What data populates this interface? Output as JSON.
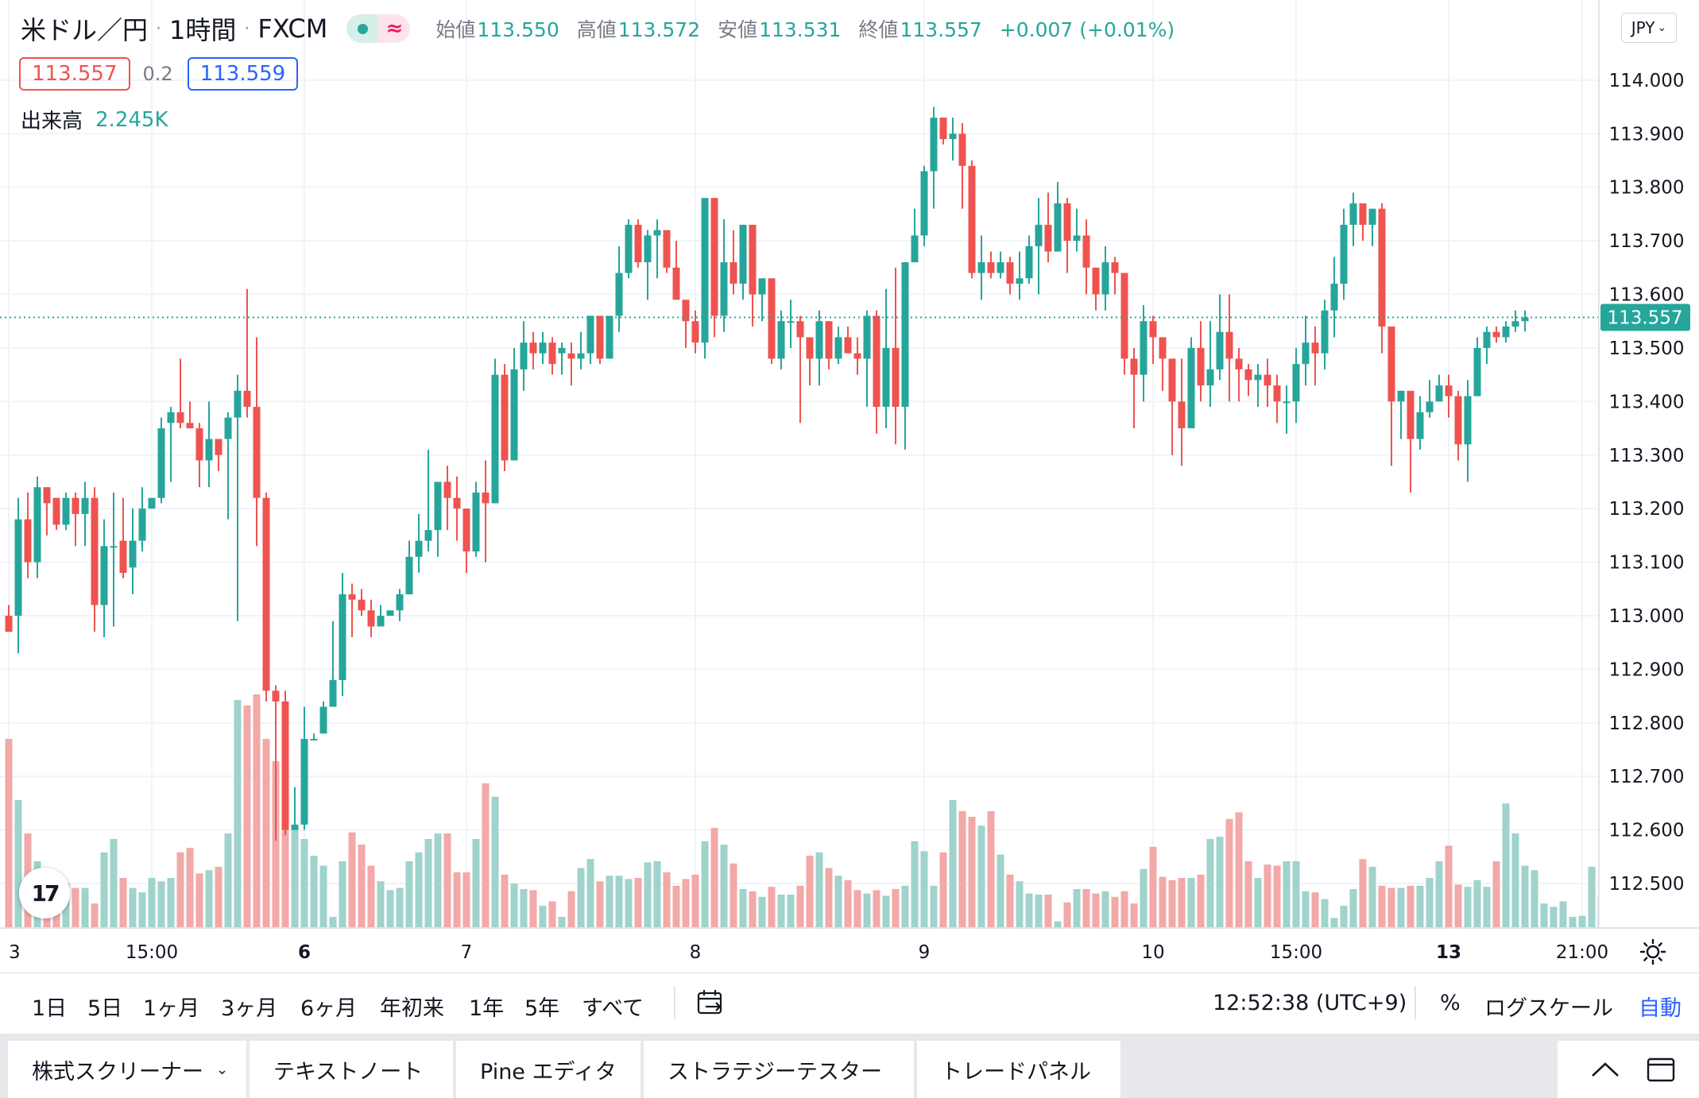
{
  "header": {
    "symbol": "米ドル／円",
    "interval": "1時間",
    "exchange": "FXCM",
    "open_label": "始値",
    "open": "113.550",
    "high_label": "高値",
    "high": "113.572",
    "low_label": "安値",
    "low": "113.531",
    "close_label": "終値",
    "close": "113.557",
    "change": "+0.007 (+0.01%)"
  },
  "quote": {
    "sell": "113.557",
    "spread": "0.2",
    "buy": "113.559"
  },
  "volume_indicator": {
    "label": "出来高",
    "value": "2.245K"
  },
  "currency_button": "JPY",
  "logo": "17",
  "bottom_toolbar": {
    "ranges": [
      "1日",
      "5日",
      "1ヶ月",
      "3ヶ月",
      "6ヶ月",
      "年初来",
      "1年",
      "5年",
      "すべて"
    ],
    "time": "12:52:38 (UTC+9)",
    "percent": "%",
    "log_scale": "ログスケール",
    "auto": "自動"
  },
  "widget_tabs": [
    "株式スクリーナー",
    "テキストノート",
    "Pine エディタ",
    "ストラテジーテスター",
    "トレードパネル"
  ],
  "colors": {
    "up": "#26a69a",
    "down": "#ef5350",
    "vol_up": "#9fd3cc",
    "vol_down": "#f2a9a7",
    "grid": "#f0f3fa",
    "accent": "#2962ff"
  },
  "chart_data": {
    "type": "candlestick",
    "symbol": "USD/JPY",
    "interval": "1H",
    "ylim": [
      112.417,
      114.12
    ],
    "y_ticks": [
      "114.000",
      "113.900",
      "113.800",
      "113.700",
      "113.600",
      "113.500",
      "113.400",
      "113.300",
      "113.200",
      "113.100",
      "113.000",
      "112.900",
      "112.800",
      "112.700",
      "112.600",
      "112.500"
    ],
    "x_ticks": [
      {
        "label": "3",
        "bar": 0,
        "bold": false
      },
      {
        "label": "15:00",
        "bar": 15,
        "bold": false
      },
      {
        "label": "6",
        "bar": 31,
        "bold": true
      },
      {
        "label": "7",
        "bar": 48,
        "bold": false
      },
      {
        "label": "8",
        "bar": 72,
        "bold": false
      },
      {
        "label": "9",
        "bar": 96,
        "bold": false
      },
      {
        "label": "10",
        "bar": 120,
        "bold": false
      },
      {
        "label": "15:00",
        "bar": 135,
        "bold": false
      },
      {
        "label": "13",
        "bar": 151,
        "bold": true
      },
      {
        "label": "21:00",
        "bar": 165,
        "bold": false
      }
    ],
    "last_price": "113.557",
    "candles": [
      [
        113.0,
        112.97,
        113.02,
        112.98
      ],
      [
        113.0,
        113.18,
        113.22,
        112.93
      ],
      [
        113.18,
        113.1,
        113.23,
        113.07
      ],
      [
        113.1,
        113.24,
        113.26,
        113.07
      ],
      [
        113.24,
        113.21,
        113.22,
        113.15
      ],
      [
        113.22,
        113.17,
        113.18,
        113.16
      ],
      [
        113.17,
        113.22,
        113.23,
        113.16
      ],
      [
        113.22,
        113.19,
        113.23,
        113.13
      ],
      [
        113.19,
        113.22,
        113.25,
        113.13
      ],
      [
        113.22,
        113.02,
        113.24,
        112.97
      ],
      [
        113.02,
        113.13,
        113.18,
        112.96
      ],
      [
        113.13,
        113.13,
        113.23,
        112.98
      ],
      [
        113.14,
        113.08,
        113.22,
        113.07
      ],
      [
        113.09,
        113.14,
        113.2,
        113.04
      ],
      [
        113.14,
        113.2,
        113.24,
        113.12
      ],
      [
        113.2,
        113.22,
        113.22,
        113.2
      ],
      [
        113.22,
        113.35,
        113.37,
        113.21
      ],
      [
        113.36,
        113.38,
        113.39,
        113.25
      ],
      [
        113.38,
        113.36,
        113.48,
        113.35
      ],
      [
        113.36,
        113.35,
        113.4,
        113.35
      ],
      [
        113.35,
        113.29,
        113.36,
        113.24
      ],
      [
        113.29,
        113.33,
        113.4,
        113.24
      ],
      [
        113.33,
        113.3,
        113.33,
        113.27
      ],
      [
        113.33,
        113.37,
        113.38,
        113.18
      ],
      [
        113.37,
        113.42,
        113.45,
        112.99
      ],
      [
        113.42,
        113.39,
        113.61,
        113.37
      ],
      [
        113.39,
        113.22,
        113.52,
        113.13
      ],
      [
        113.22,
        112.86,
        113.23,
        112.84
      ],
      [
        112.86,
        112.84,
        112.87,
        112.58
      ],
      [
        112.84,
        112.6,
        112.86,
        112.59
      ],
      [
        112.6,
        112.61,
        112.68,
        112.61
      ],
      [
        112.61,
        112.77,
        112.83,
        112.6
      ],
      [
        112.77,
        112.77,
        112.78,
        112.77
      ],
      [
        112.78,
        112.83,
        112.84,
        112.82
      ],
      [
        112.83,
        112.88,
        112.99,
        112.89
      ],
      [
        112.88,
        113.04,
        113.08,
        112.85
      ],
      [
        113.04,
        113.03,
        113.06,
        112.96
      ],
      [
        113.03,
        113.01,
        113.05,
        113.0
      ],
      [
        113.01,
        112.98,
        113.03,
        112.96
      ],
      [
        112.98,
        113.0,
        113.02,
        112.99
      ],
      [
        113.0,
        113.01,
        113.01,
        113.0
      ],
      [
        113.01,
        113.04,
        113.05,
        112.99
      ],
      [
        113.04,
        113.11,
        113.14,
        113.04
      ],
      [
        113.11,
        113.14,
        113.19,
        113.08
      ],
      [
        113.14,
        113.16,
        113.31,
        113.12
      ],
      [
        113.16,
        113.25,
        113.25,
        113.11
      ],
      [
        113.25,
        113.22,
        113.28,
        113.16
      ],
      [
        113.22,
        113.2,
        113.26,
        113.14
      ],
      [
        113.2,
        113.12,
        113.18,
        113.08
      ],
      [
        113.12,
        113.23,
        113.25,
        113.11
      ],
      [
        113.23,
        113.21,
        113.29,
        113.1
      ],
      [
        113.21,
        113.45,
        113.48,
        113.21
      ],
      [
        113.45,
        113.29,
        113.47,
        113.27
      ],
      [
        113.29,
        113.46,
        113.5,
        113.31
      ],
      [
        113.46,
        113.51,
        113.55,
        113.42
      ],
      [
        113.51,
        113.49,
        113.53,
        113.46
      ],
      [
        113.49,
        113.51,
        113.53,
        113.47
      ],
      [
        113.51,
        113.47,
        113.52,
        113.45
      ],
      [
        113.49,
        113.5,
        113.51,
        113.45
      ],
      [
        113.49,
        113.48,
        113.51,
        113.43
      ],
      [
        113.48,
        113.49,
        113.53,
        113.46
      ],
      [
        113.49,
        113.56,
        113.56,
        113.47
      ],
      [
        113.56,
        113.48,
        113.56,
        113.47
      ],
      [
        113.48,
        113.56,
        113.56,
        113.48
      ],
      [
        113.56,
        113.64,
        113.69,
        113.53
      ],
      [
        113.64,
        113.73,
        113.74,
        113.63
      ],
      [
        113.73,
        113.66,
        113.74,
        113.65
      ],
      [
        113.66,
        113.71,
        113.72,
        113.59
      ],
      [
        113.71,
        113.72,
        113.74,
        113.63
      ],
      [
        113.72,
        113.65,
        113.7,
        113.64
      ],
      [
        113.65,
        113.59,
        113.7,
        113.6
      ],
      [
        113.59,
        113.55,
        113.59,
        113.5
      ],
      [
        113.55,
        113.51,
        113.57,
        113.49
      ],
      [
        113.51,
        113.78,
        113.78,
        113.48
      ],
      [
        113.78,
        113.56,
        113.77,
        113.52
      ],
      [
        113.56,
        113.66,
        113.74,
        113.53
      ],
      [
        113.66,
        113.62,
        113.72,
        113.6
      ],
      [
        113.62,
        113.73,
        113.73,
        113.59
      ],
      [
        113.73,
        113.6,
        113.71,
        113.54
      ],
      [
        113.6,
        113.63,
        113.63,
        113.55
      ],
      [
        113.63,
        113.48,
        113.63,
        113.47
      ],
      [
        113.48,
        113.55,
        113.57,
        113.46
      ],
      [
        113.55,
        113.55,
        113.59,
        113.5
      ],
      [
        113.55,
        113.52,
        113.56,
        113.36
      ],
      [
        113.52,
        113.48,
        113.5,
        113.43
      ],
      [
        113.48,
        113.55,
        113.57,
        113.43
      ],
      [
        113.55,
        113.48,
        113.55,
        113.46
      ],
      [
        113.48,
        113.52,
        113.54,
        113.47
      ],
      [
        113.52,
        113.49,
        113.54,
        113.49
      ],
      [
        113.49,
        113.48,
        113.52,
        113.45
      ],
      [
        113.48,
        113.56,
        113.57,
        113.39
      ],
      [
        113.56,
        113.39,
        113.57,
        113.34
      ],
      [
        113.39,
        113.5,
        113.61,
        113.35
      ],
      [
        113.5,
        113.39,
        113.65,
        113.32
      ],
      [
        113.39,
        113.66,
        113.66,
        113.31
      ],
      [
        113.66,
        113.71,
        113.76,
        113.66
      ],
      [
        113.71,
        113.83,
        113.84,
        113.69
      ],
      [
        113.83,
        113.93,
        113.95,
        113.76
      ],
      [
        113.93,
        113.89,
        113.93,
        113.88
      ],
      [
        113.89,
        113.9,
        113.93,
        113.85
      ],
      [
        113.9,
        113.84,
        113.92,
        113.76
      ],
      [
        113.84,
        113.64,
        113.85,
        113.63
      ],
      [
        113.64,
        113.66,
        113.71,
        113.59
      ],
      [
        113.66,
        113.64,
        113.68,
        113.63
      ],
      [
        113.64,
        113.66,
        113.68,
        113.63
      ],
      [
        113.66,
        113.62,
        113.67,
        113.6
      ],
      [
        113.62,
        113.63,
        113.68,
        113.59
      ],
      [
        113.63,
        113.69,
        113.71,
        113.62
      ],
      [
        113.69,
        113.73,
        113.78,
        113.6
      ],
      [
        113.73,
        113.68,
        113.79,
        113.66
      ],
      [
        113.68,
        113.77,
        113.81,
        113.7
      ],
      [
        113.77,
        113.7,
        113.78,
        113.64
      ],
      [
        113.7,
        113.71,
        113.76,
        113.68
      ],
      [
        113.71,
        113.65,
        113.74,
        113.6
      ],
      [
        113.65,
        113.6,
        113.64,
        113.57
      ],
      [
        113.6,
        113.66,
        113.69,
        113.57
      ],
      [
        113.66,
        113.64,
        113.67,
        113.6
      ],
      [
        113.64,
        113.48,
        113.63,
        113.45
      ],
      [
        113.48,
        113.45,
        113.5,
        113.35
      ],
      [
        113.45,
        113.55,
        113.58,
        113.4
      ],
      [
        113.55,
        113.52,
        113.56,
        113.47
      ],
      [
        113.52,
        113.48,
        113.5,
        113.42
      ],
      [
        113.48,
        113.4,
        113.45,
        113.3
      ],
      [
        113.4,
        113.35,
        113.48,
        113.28
      ],
      [
        113.35,
        113.5,
        113.52,
        113.35
      ],
      [
        113.5,
        113.43,
        113.55,
        113.4
      ],
      [
        113.43,
        113.46,
        113.55,
        113.39
      ],
      [
        113.46,
        113.53,
        113.6,
        113.44
      ],
      [
        113.53,
        113.48,
        113.6,
        113.4
      ],
      [
        113.48,
        113.46,
        113.5,
        113.4
      ],
      [
        113.46,
        113.44,
        113.47,
        113.41
      ],
      [
        113.44,
        113.45,
        113.47,
        113.39
      ],
      [
        113.45,
        113.43,
        113.48,
        113.39
      ],
      [
        113.43,
        113.4,
        113.45,
        113.36
      ],
      [
        113.4,
        113.4,
        113.43,
        113.34
      ],
      [
        113.4,
        113.47,
        113.5,
        113.36
      ],
      [
        113.47,
        113.51,
        113.56,
        113.43
      ],
      [
        113.51,
        113.49,
        113.54,
        113.43
      ],
      [
        113.49,
        113.57,
        113.59,
        113.46
      ],
      [
        113.57,
        113.62,
        113.67,
        113.52
      ],
      [
        113.62,
        113.73,
        113.76,
        113.59
      ],
      [
        113.73,
        113.77,
        113.79,
        113.69
      ],
      [
        113.77,
        113.73,
        113.75,
        113.7
      ],
      [
        113.73,
        113.76,
        113.76,
        113.69
      ],
      [
        113.76,
        113.54,
        113.77,
        113.49
      ],
      [
        113.54,
        113.4,
        113.54,
        113.28
      ],
      [
        113.4,
        113.42,
        113.42,
        113.33
      ],
      [
        113.42,
        113.33,
        113.42,
        113.23
      ],
      [
        113.33,
        113.38,
        113.41,
        113.31
      ],
      [
        113.38,
        113.4,
        113.44,
        113.37
      ],
      [
        113.4,
        113.43,
        113.45,
        113.4
      ],
      [
        113.43,
        113.41,
        113.45,
        113.37
      ],
      [
        113.41,
        113.32,
        113.42,
        113.29
      ],
      [
        113.32,
        113.41,
        113.44,
        113.25
      ],
      [
        113.41,
        113.5,
        113.52,
        113.41
      ],
      [
        113.5,
        113.53,
        113.54,
        113.47
      ],
      [
        113.53,
        113.52,
        113.54,
        113.51
      ],
      [
        113.52,
        113.54,
        113.55,
        113.51
      ],
      [
        113.54,
        113.55,
        113.57,
        113.53
      ],
      [
        113.55,
        113.557,
        113.57,
        113.531
      ]
    ],
    "volumes": [
      1.7,
      1.15,
      0.85,
      0.6,
      0.53,
      0.5,
      0.4,
      0.36,
      0.36,
      0.22,
      0.68,
      0.8,
      0.45,
      0.36,
      0.32,
      0.45,
      0.42,
      0.45,
      0.68,
      0.72,
      0.49,
      0.52,
      0.55,
      0.85,
      2.05,
      2.0,
      2.1,
      1.7,
      1.5,
      0.95,
      0.9,
      0.8,
      0.65,
      0.56,
      0.1,
      0.6,
      0.86,
      0.75,
      0.56,
      0.42,
      0.34,
      0.36,
      0.6,
      0.68,
      0.8,
      0.85,
      0.85,
      0.5,
      0.5,
      0.8,
      1.3,
      1.18,
      0.48,
      0.4,
      0.35,
      0.34,
      0.2,
      0.24,
      0.1,
      0.33,
      0.54,
      0.62,
      0.42,
      0.47,
      0.47,
      0.44,
      0.45,
      0.59,
      0.6,
      0.5,
      0.38,
      0.44,
      0.48,
      0.78,
      0.9,
      0.75,
      0.58,
      0.35,
      0.33,
      0.28,
      0.37,
      0.3,
      0.3,
      0.38,
      0.65,
      0.68,
      0.54,
      0.47,
      0.43,
      0.34,
      0.31,
      0.34,
      0.29,
      0.35,
      0.38,
      0.78,
      0.69,
      0.38,
      0.68,
      1.15,
      1.05,
      1.0,
      0.92,
      1.05,
      0.66,
      0.48,
      0.42,
      0.31,
      0.3,
      0.3,
      0.06,
      0.23,
      0.35,
      0.35,
      0.31,
      0.33,
      0.28,
      0.33,
      0.22,
      0.53,
      0.73,
      0.46,
      0.43,
      0.45,
      0.45,
      0.48,
      0.8,
      0.82,
      0.98,
      1.04,
      0.6,
      0.45,
      0.57,
      0.56,
      0.6,
      0.6,
      0.33,
      0.32,
      0.26,
      0.09,
      0.2,
      0.35,
      0.62,
      0.55,
      0.38,
      0.36,
      0.36,
      0.38,
      0.38,
      0.45,
      0.6,
      0.74,
      0.39,
      0.37,
      0.43,
      0.37,
      0.6,
      1.12,
      0.85,
      0.56,
      0.52,
      0.22,
      0.19,
      0.24,
      0.1,
      0.11,
      0.55,
      0.28,
      0.26,
      0.22,
      0.18
    ]
  }
}
